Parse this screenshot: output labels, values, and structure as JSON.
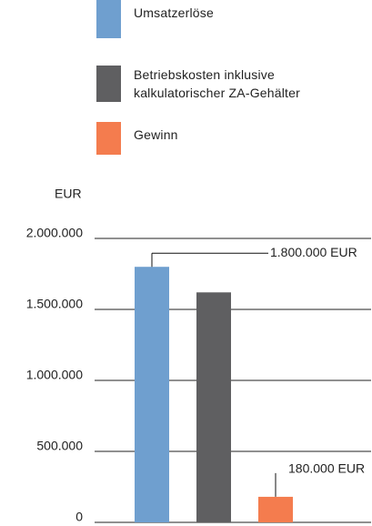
{
  "chart_data": {
    "type": "bar",
    "y_axis_label": "EUR",
    "categories": [
      null
    ],
    "series": [
      {
        "name": "Umsatzerlöse",
        "color": "#6f9fcf",
        "values": [
          1800000
        ],
        "value_labels": [
          "1.800.000 EUR"
        ]
      },
      {
        "name": "Betriebskosten inklusive kalkulatorischer ZA-Gehälter",
        "color": "#5f5f61",
        "values": [
          1620000
        ]
      },
      {
        "name": "Gewinn",
        "color": "#f47c4e",
        "values": [
          180000
        ],
        "value_labels": [
          "180.000 EUR"
        ]
      }
    ],
    "ylim": [
      0,
      2000000
    ],
    "yticks": [
      0,
      {
        "value": 500000,
        "label": "500.000"
      },
      {
        "value": 1000000,
        "label": "1.000.000"
      },
      {
        "value": 1500000,
        "label": "1.500.000"
      },
      {
        "value": 2000000,
        "label": "2.000.000"
      }
    ],
    "grid": true,
    "legend": "top"
  }
}
